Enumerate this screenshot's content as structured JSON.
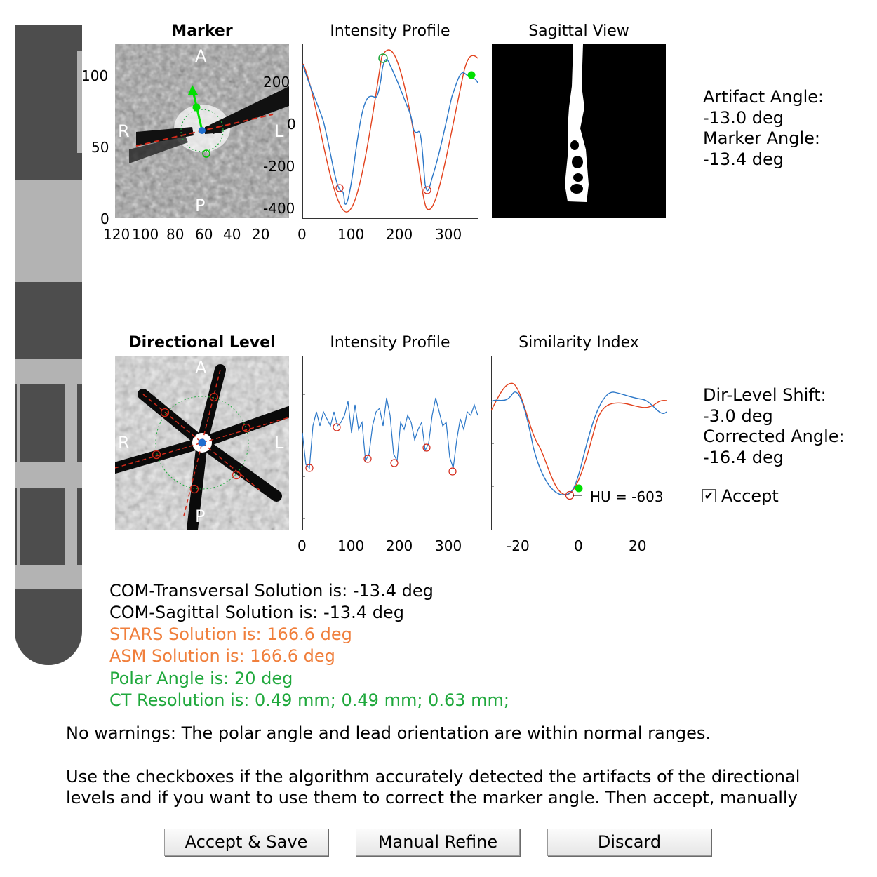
{
  "colors": {
    "orange": "#f07f3c",
    "green": "#1fa83c",
    "blue": "#1f6fd0",
    "red": "#d42a1a",
    "curve_blue": "#2b77c8",
    "curve_red": "#e2411c"
  },
  "marker_panel": {
    "title": "Marker",
    "y_ticks": [
      "100",
      "50",
      "0"
    ],
    "x_ticks": [
      "120",
      "100",
      "80",
      "60",
      "40",
      "20"
    ],
    "labels": {
      "a": "A",
      "p": "P",
      "r": "R",
      "l": "L"
    }
  },
  "profile_top": {
    "title": "Intensity Profile",
    "y_ticks": [
      "200",
      "0",
      "-200",
      "-400"
    ],
    "x_ticks": [
      "0",
      "100",
      "200",
      "300"
    ]
  },
  "sagittal": {
    "title": "Sagittal View"
  },
  "artifact": {
    "label": "Artifact Angle:",
    "value": "-13.0 deg",
    "marker_label": "Marker Angle:",
    "marker_value": "-13.4 deg"
  },
  "dir_panel": {
    "title": "Directional Level",
    "labels": {
      "a": "A",
      "p": "P",
      "r": "R",
      "l": "L"
    }
  },
  "profile_bottom": {
    "title": "Intensity Profile",
    "x_ticks": [
      "0",
      "100",
      "200",
      "300"
    ]
  },
  "similarity": {
    "title": "Similarity Index",
    "x_ticks": [
      "-20",
      "0",
      "20"
    ],
    "annotation": "HU = -603"
  },
  "dirlevel": {
    "shift_label": "Dir-Level Shift:",
    "shift_value": "-3.0 deg",
    "corr_label": "Corrected Angle:",
    "corr_value": "-16.4 deg",
    "accept_label": "Accept",
    "accept_checked": true
  },
  "solutions": [
    "COM-Transversal Solution is: -13.4 deg",
    "COM-Sagittal Solution is: -13.4 deg",
    "STARS Solution is: 166.6 deg",
    "ASM Solution is: 166.6 deg",
    "Polar Angle is: 20 deg",
    "CT Resolution is: 0.49 mm; 0.49 mm; 0.63 mm;"
  ],
  "warning": "No warnings: The polar angle and lead orientation are within normal ranges.",
  "instructions": [
    "Use the checkboxes if the algorithm accurately detected the artifacts of the directional",
    "levels and if you want to use them to correct the marker angle. Then accept, manually"
  ],
  "buttons": {
    "accept": "Accept & Save",
    "refine": "Manual Refine",
    "discard": "Discard"
  }
}
